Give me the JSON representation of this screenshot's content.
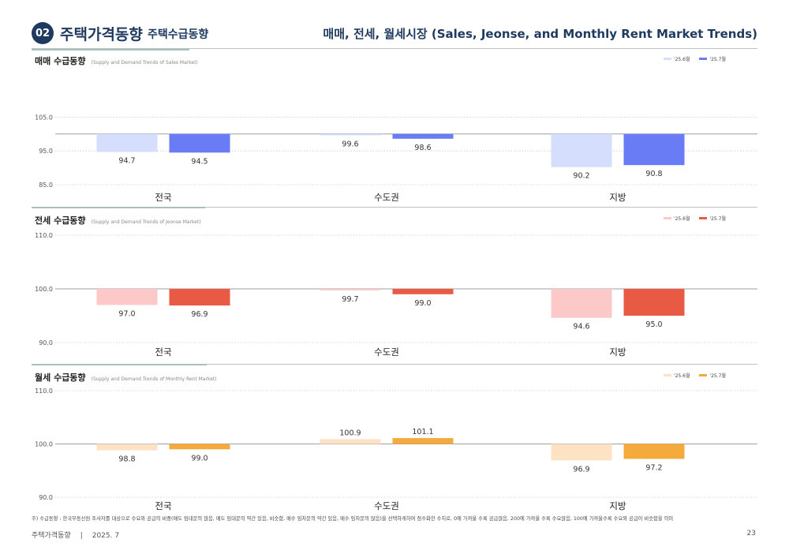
{
  "header": {
    "number": "02",
    "title": "주택가격동향",
    "subtitle": "주택수급동향",
    "right_title": "매매, 전세, 월세시장 (Sales, Jeonse, and Monthly Rent Market Trends)"
  },
  "colors": {
    "sales_jun": "#d5defc",
    "sales_jul": "#6a7cf5",
    "jeonse_jun": "#fcc8c8",
    "jeonse_jul": "#e95a45",
    "rent_jun": "#fde3c3",
    "rent_jul": "#f4ab3c"
  },
  "chart_data": [
    {
      "type": "bar",
      "title": "매매 수급동향",
      "subtitle": "(Supply and Demand Trends of Sales Market)",
      "categories": [
        "전국",
        "수도권",
        "지방"
      ],
      "baseline": 100,
      "ylim": [
        85,
        110
      ],
      "yticks": [
        "105.0",
        "95.0",
        "85.0"
      ],
      "series": [
        {
          "name": "'25.6월",
          "values": [
            94.7,
            99.6,
            90.2
          ],
          "labels": [
            "94.7",
            "99.6",
            "90.2"
          ]
        },
        {
          "name": "'25.7월",
          "values": [
            94.5,
            98.6,
            90.8
          ],
          "labels": [
            "94.5",
            "98.6",
            "90.8"
          ]
        }
      ]
    },
    {
      "type": "bar",
      "title": "전세 수급동향",
      "subtitle": "(Supply and Demand Trends of Jeonse Market)",
      "categories": [
        "전국",
        "수도권",
        "지방"
      ],
      "baseline": 100,
      "ylim": [
        90,
        110
      ],
      "yticks": [
        "110.0",
        "100.0",
        "90.0"
      ],
      "series": [
        {
          "name": "'25.6월",
          "values": [
            97.0,
            99.7,
            94.6
          ],
          "labels": [
            "97.0",
            "99.7",
            "94.6"
          ]
        },
        {
          "name": "'25.7월",
          "values": [
            96.9,
            99.0,
            95.0
          ],
          "labels": [
            "96.9",
            "99.0",
            "95.0"
          ]
        }
      ]
    },
    {
      "type": "bar",
      "title": "월세 수급동향",
      "subtitle": "(Supply and Demand Trends of Monthly Rent Market)",
      "categories": [
        "전국",
        "수도권",
        "지방"
      ],
      "baseline": 100,
      "ylim": [
        90,
        110
      ],
      "yticks": [
        "110.0",
        "100.0",
        "90.0"
      ],
      "series": [
        {
          "name": "'25.6월",
          "values": [
            98.8,
            100.9,
            96.9
          ],
          "labels": [
            "98.8",
            "100.9",
            "96.9"
          ]
        },
        {
          "name": "'25.7월",
          "values": [
            99.0,
            101.1,
            97.2
          ],
          "labels": [
            "99.0",
            "101.1",
            "97.2"
          ]
        }
      ]
    }
  ],
  "footnote": "주) 수급동향 : 한국부동산원 조사자를 대상으로 수요와 공급의 비중(매도 임대문의 많음, 매도 임대문의 약간 있음, 비슷함, 매수 임차문의 약간 있음, 매수 임차문의 많음)을 선택하게하여 점수화한 수치로, 0에 가까울 수록 공급많음, 200에 가까울 수록 수요많음, 100에 가까울수록 수요와 공급이 비슷함을 의미",
  "footer": {
    "left": "주택가격동향",
    "date": "2025. 7",
    "page": "23"
  }
}
